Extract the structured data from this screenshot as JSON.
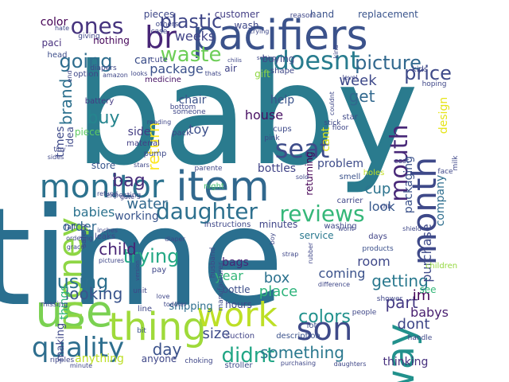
{
  "words": [
    {
      "text": "baby",
      "color": "#2a7b8e"
    },
    {
      "text": "time",
      "color": "#2a6f8f"
    },
    {
      "text": "pacifiers",
      "color": "#3b528b"
    },
    {
      "text": "item",
      "color": "#31688e"
    },
    {
      "text": "monitor",
      "color": "#2c728e"
    },
    {
      "text": "use",
      "color": "#7ad151"
    },
    {
      "text": "thing",
      "color": "#9fda3a"
    },
    {
      "text": "work",
      "color": "#bddf26"
    },
    {
      "text": "son",
      "color": "#3e4a89"
    },
    {
      "text": "way",
      "color": "#21918c"
    },
    {
      "text": "money",
      "color": "#8ed645"
    },
    {
      "text": "month",
      "color": "#3e4989"
    },
    {
      "text": "br",
      "color": "#482677"
    },
    {
      "text": "quality",
      "color": "#2e6e8e"
    },
    {
      "text": "daughter",
      "color": "#2d708e"
    },
    {
      "text": "reviews",
      "color": "#35b779"
    },
    {
      "text": "seat",
      "color": "#3e4c8a"
    },
    {
      "text": "doesnt",
      "color": "#287c8e"
    },
    {
      "text": "waste",
      "color": "#6ece58"
    },
    {
      "text": "ones",
      "color": "#46337e"
    },
    {
      "text": "going",
      "color": "#2e6d8e"
    },
    {
      "text": "plastic",
      "color": "#3f4788"
    },
    {
      "text": "using",
      "color": "#2d708e"
    },
    {
      "text": "didnt",
      "color": "#21a685"
    },
    {
      "text": "something",
      "color": "#2a788e"
    },
    {
      "text": "mouth",
      "color": "#482878"
    },
    {
      "text": "picture",
      "color": "#31688e"
    },
    {
      "text": "price",
      "color": "#3e4a89"
    },
    {
      "text": "return",
      "color": "#fde725"
    },
    {
      "text": "trying",
      "color": "#22a884"
    },
    {
      "text": "colors",
      "color": "#21918c"
    },
    {
      "text": "getting",
      "color": "#29788e"
    },
    {
      "text": "water",
      "color": "#31688e"
    },
    {
      "text": "babies",
      "color": "#2c728e"
    },
    {
      "text": "child",
      "color": "#482475"
    },
    {
      "text": "looking",
      "color": "#3a548c"
    },
    {
      "text": "bag",
      "color": "#472c7a"
    },
    {
      "text": "buy",
      "color": "#25858e"
    },
    {
      "text": "brand",
      "color": "#2d708e"
    },
    {
      "text": "box",
      "color": "#2c728e"
    },
    {
      "text": "place",
      "color": "#2fb47c"
    },
    {
      "text": "part",
      "color": "#443983"
    },
    {
      "text": "dont",
      "color": "#3f4788"
    },
    {
      "text": "day",
      "color": "#3b528b"
    },
    {
      "text": "size",
      "color": "#3e4c8a"
    },
    {
      "text": "week",
      "color": "#3e4989"
    },
    {
      "text": "get",
      "color": "#31688e"
    },
    {
      "text": "weeks",
      "color": "#414487"
    },
    {
      "text": "package",
      "color": "#3b518b"
    },
    {
      "text": "order",
      "color": "#31688e"
    },
    {
      "text": "cup",
      "color": "#2c738e"
    },
    {
      "text": "look",
      "color": "#38598c"
    },
    {
      "text": "im",
      "color": "#450457"
    },
    {
      "text": "babys",
      "color": "#481f70"
    },
    {
      "text": "thinking",
      "color": "#46307e"
    },
    {
      "text": "room",
      "color": "#3f4889"
    },
    {
      "text": "coming",
      "color": "#3b528b"
    },
    {
      "text": "purchase",
      "color": "#3e4a89"
    },
    {
      "text": "company",
      "color": "#2e6e8e"
    },
    {
      "text": "packaging",
      "color": "#3b528b"
    },
    {
      "text": "design",
      "color": "#e5e419"
    },
    {
      "text": "year",
      "color": "#35b779"
    },
    {
      "text": "bags",
      "color": "#482576"
    },
    {
      "text": "bottle",
      "color": "#3d4e8a"
    },
    {
      "text": "hours",
      "color": "#3f4889"
    },
    {
      "text": "working",
      "color": "#39558c"
    },
    {
      "text": "house",
      "color": "#471063"
    },
    {
      "text": "help",
      "color": "#3a538b"
    },
    {
      "text": "bottles",
      "color": "#414487"
    },
    {
      "text": "problem",
      "color": "#3e4c8a"
    },
    {
      "text": "minutes",
      "color": "#404588"
    },
    {
      "text": "service",
      "color": "#2a788e"
    },
    {
      "text": "shipping",
      "color": "#2e6f8e"
    },
    {
      "text": "toy",
      "color": "#3c508b"
    },
    {
      "text": "chair",
      "color": "#3b528b"
    },
    {
      "text": "side",
      "color": "#433d84"
    },
    {
      "text": "times",
      "color": "#3e4a89"
    },
    {
      "text": "idea",
      "color": "#3e4989"
    },
    {
      "text": "store",
      "color": "#39568c"
    },
    {
      "text": "making",
      "color": "#3f4889"
    },
    {
      "text": "things",
      "color": "#2fb47c"
    },
    {
      "text": "anything",
      "color": "#bddf26"
    },
    {
      "text": "anyone",
      "color": "#3f4788"
    },
    {
      "text": "color",
      "color": "#440154"
    },
    {
      "text": "nothing",
      "color": "#450559"
    },
    {
      "text": "pieces",
      "color": "#3f4889"
    },
    {
      "text": "customer",
      "color": "#433e85"
    },
    {
      "text": "hand",
      "color": "#3b528b"
    },
    {
      "text": "replacement",
      "color": "#3a548c"
    },
    {
      "text": "buying",
      "color": "#3e4a89"
    },
    {
      "text": "cant",
      "color": "#dde318"
    },
    {
      "text": "returning",
      "color": "#440154"
    },
    {
      "text": "instructions",
      "color": "#3f4889"
    },
    {
      "text": "description",
      "color": "#3b528b"
    },
    {
      "text": "stroller",
      "color": "#3e4c8a"
    },
    {
      "text": "battery",
      "color": "#443a83"
    },
    {
      "text": "car",
      "color": "#3c4f8a"
    },
    {
      "text": "air",
      "color": "#414487"
    },
    {
      "text": "head",
      "color": "#3d4d8a"
    },
    {
      "text": "paci",
      "color": "#472f7d"
    },
    {
      "text": "medicine",
      "color": "#471164"
    },
    {
      "text": "night",
      "color": "#46c06f"
    },
    {
      "text": "cups",
      "color": "#3e4a89"
    },
    {
      "text": "kids",
      "color": "#3f4788"
    },
    {
      "text": "see",
      "color": "#35b779"
    },
    {
      "text": "wash",
      "color": "#3f4889"
    },
    {
      "text": "gift",
      "color": "#90d743"
    },
    {
      "text": "shape",
      "color": "#3f4788"
    },
    {
      "text": "piece",
      "color": "#5ec962"
    },
    {
      "text": "material",
      "color": "#433e85"
    },
    {
      "text": "pump",
      "color": "#3e4989"
    },
    {
      "text": "star",
      "color": "#3e4989"
    },
    {
      "text": "smell",
      "color": "#3b528b"
    },
    {
      "text": "carrier",
      "color": "#3f4788"
    },
    {
      "text": "days",
      "color": "#414487"
    },
    {
      "text": "products",
      "color": "#3c508b"
    },
    {
      "text": "children",
      "color": "#95d840"
    },
    {
      "text": "lot",
      "color": "#3d4e8a"
    },
    {
      "text": "suction",
      "color": "#414487"
    },
    {
      "text": "husband",
      "color": "#3e4989"
    },
    {
      "text": "manufacturer",
      "color": "#3e4a89"
    },
    {
      "text": "pay",
      "color": "#3f4788"
    },
    {
      "text": "unit",
      "color": "#3f4788"
    },
    {
      "text": "bit",
      "color": "#3b528b"
    },
    {
      "text": "line",
      "color": "#3f4788"
    },
    {
      "text": "holes",
      "color": "#c2df23"
    },
    {
      "text": "milk",
      "color": "#3f4788"
    },
    {
      "text": "washing",
      "color": "#3f4788"
    },
    {
      "text": "hoping",
      "color": "#3f4788"
    },
    {
      "text": "cost",
      "color": "#3f4788"
    },
    {
      "text": "face",
      "color": "#3f4788"
    },
    {
      "text": "parente",
      "color": "#3f4788"
    },
    {
      "text": "pink",
      "color": "#3f4788"
    },
    {
      "text": "floor",
      "color": "#3f4788"
    },
    {
      "text": "stick",
      "color": "#3f4788"
    },
    {
      "text": "bottom",
      "color": "#3f4788"
    },
    {
      "text": "pack",
      "color": "#3f4788"
    },
    {
      "text": "someone",
      "color": "#3f4788"
    },
    {
      "text": "reading",
      "color": "#3f4788"
    },
    {
      "text": "option",
      "color": "#3f4788"
    },
    {
      "text": "amazon",
      "color": "#3f4788"
    },
    {
      "text": "diapers",
      "color": "#3f4788"
    },
    {
      "text": "looks",
      "color": "#3f4788"
    },
    {
      "text": "giving",
      "color": "#3f4788"
    },
    {
      "text": "others",
      "color": "#3f4788"
    },
    {
      "text": "case",
      "color": "#3f4788"
    },
    {
      "text": "cute",
      "color": "#3f4788"
    },
    {
      "text": "thats",
      "color": "#3f4788"
    },
    {
      "text": "hate",
      "color": "#3f4788"
    },
    {
      "text": "end",
      "color": "#3f4788"
    },
    {
      "text": "chilis",
      "color": "#3f4788"
    },
    {
      "text": "reason",
      "color": "#3f4788"
    },
    {
      "text": "kind",
      "color": "#3f4788"
    },
    {
      "text": "crying",
      "color": "#3f4788"
    },
    {
      "text": "setting",
      "color": "#3f4788"
    },
    {
      "text": "couldnt",
      "color": "#3f4788"
    },
    {
      "text": "level",
      "color": "#3f4788"
    },
    {
      "text": "gate",
      "color": "#3f4788"
    },
    {
      "text": "safety",
      "color": "#3f4788"
    },
    {
      "text": "expecting",
      "color": "#3f4788"
    },
    {
      "text": "refund",
      "color": "#3f4788"
    },
    {
      "text": "stars",
      "color": "#3f4788"
    },
    {
      "text": "inches",
      "color": "#3f4788"
    },
    {
      "text": "leaks",
      "color": "#3f4788"
    },
    {
      "text": "fall",
      "color": "#3f4788"
    },
    {
      "text": "ordering",
      "color": "#3f4788"
    },
    {
      "text": "graco",
      "color": "#3f4788"
    },
    {
      "text": "pictures",
      "color": "#3f4788"
    },
    {
      "text": "version",
      "color": "#3f4788"
    },
    {
      "text": "diaper",
      "color": "#3f4788"
    },
    {
      "text": "strap",
      "color": "#3f4788"
    },
    {
      "text": "rubber",
      "color": "#3f4788"
    },
    {
      "text": "wont",
      "color": "#3f4788"
    },
    {
      "text": "difference",
      "color": "#3f4788"
    },
    {
      "text": "shower",
      "color": "#3f4788"
    },
    {
      "text": "people",
      "color": "#3f4788"
    },
    {
      "text": "handle",
      "color": "#3f4788"
    },
    {
      "text": "love",
      "color": "#3f4788"
    },
    {
      "text": "toddler",
      "color": "#3f4788"
    },
    {
      "text": "missing",
      "color": "#3f4788"
    },
    {
      "text": "ripples",
      "color": "#3f4788"
    },
    {
      "text": "minute",
      "color": "#3f4788"
    },
    {
      "text": "choking",
      "color": "#3f4788"
    },
    {
      "text": "purchasing",
      "color": "#3f4788"
    },
    {
      "text": "daughters",
      "color": "#3f4788"
    },
    {
      "text": "sides",
      "color": "#3f4788"
    },
    {
      "text": "tiny",
      "color": "#3f4788"
    },
    {
      "text": "crib",
      "color": "#3f4788"
    },
    {
      "text": "sold",
      "color": "#3f4788"
    },
    {
      "text": "boy",
      "color": "#3f4788"
    },
    {
      "text": "shield",
      "color": "#3f4788"
    }
  ]
}
